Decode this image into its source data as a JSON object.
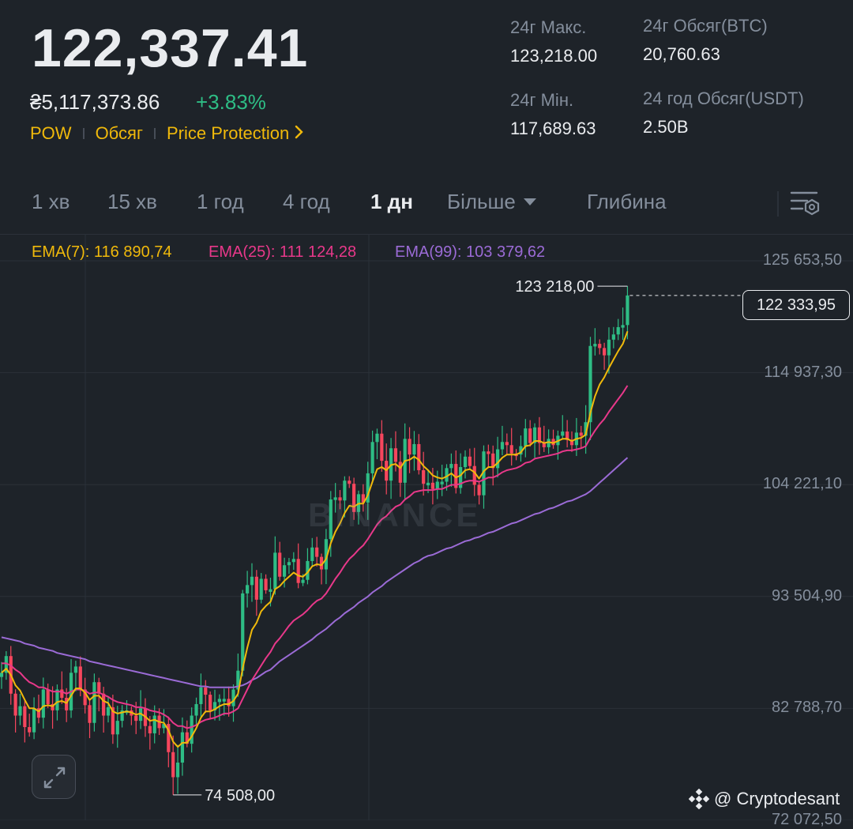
{
  "header": {
    "last_price": "122,337.41",
    "fiat_price": "₴5,117,373.86",
    "change_pct": "+3.83%",
    "tags": [
      "POW",
      "Обсяг",
      "Price Protection"
    ]
  },
  "stats": {
    "high_label": "24г Макс.",
    "high_value": "123,218.00",
    "low_label": "24г Мін.",
    "low_value": "117,689.63",
    "vol_btc_label": "24г Обсяг(BTC)",
    "vol_btc_value": "20,760.63",
    "vol_usdt_label": "24 год Обсяг(USDT)",
    "vol_usdt_value": "2.50B"
  },
  "tabs": {
    "items": [
      "1 хв",
      "15 хв",
      "1 год",
      "4 год",
      "1 дн",
      "Більше",
      "Глибина"
    ],
    "active": "1 дн"
  },
  "ema": {
    "ema7": "EMA(7): 116 890,74",
    "ema25": "EMA(25): 111 124,28",
    "ema99": "EMA(99): 103 379,62"
  },
  "colors": {
    "up": "#2ebd85",
    "down": "#f6465d",
    "ema7": "#f0b90b",
    "ema25": "#e8388a",
    "ema99": "#9b6bd6",
    "accent": "#f0b90b"
  },
  "watermark": "BINANCE",
  "credit": "@ Cryptodesant",
  "icons": [
    "chevron-right-icon",
    "caret-down-icon",
    "chart-settings-icon",
    "expand-icon",
    "binance-logo-icon"
  ],
  "chart_data": {
    "type": "candlestick",
    "interval": "1 дн",
    "y_axis_labels": [
      "125 653,50",
      "114 937,30",
      "104 221,10",
      "93 504,90",
      "82 788,70",
      "72 072,50"
    ],
    "y_axis_values": [
      125653.5,
      114937.3,
      104221.1,
      93504.9,
      82788.7,
      72072.5
    ],
    "ylim": [
      72072.5,
      125653.5
    ],
    "annotations": {
      "high_label": "123 218,00",
      "high_value": 123218.0,
      "low_label": "74 508,00",
      "low_value": 74508.0,
      "current_price_label": "122 333,95",
      "current_price": 122333.95
    },
    "closes": [
      86200,
      87800,
      84200,
      82100,
      83000,
      81000,
      80500,
      82800,
      81900,
      84600,
      83200,
      82600,
      84600,
      83800,
      82600,
      86200,
      86800,
      84600,
      83100,
      81400,
      85300,
      84200,
      82100,
      82900,
      80300,
      81600,
      82600,
      82600,
      82100,
      81600,
      82800,
      81100,
      80400,
      82100,
      80900,
      81300,
      78600,
      76200,
      77600,
      80500,
      79400,
      82100,
      83200,
      84800,
      84100,
      82600,
      83400,
      83700,
      83700,
      83000,
      84600,
      86400,
      93800,
      94600,
      95400,
      93200,
      95200,
      94100,
      94200,
      97700,
      95400,
      96500,
      96800,
      97100,
      94800,
      95100,
      96900,
      98200,
      97300,
      96100,
      99000,
      102800,
      103000,
      102700,
      104600,
      104300,
      101600,
      103300,
      102500,
      105300,
      108300,
      109100,
      106500,
      104600,
      107700,
      106400,
      104400,
      108600,
      107100,
      108100,
      105600,
      104300,
      104400,
      103800,
      104500,
      104500,
      105800,
      106200,
      103900,
      105900,
      106900,
      106000,
      104200,
      103200,
      107400,
      107200,
      105800,
      107600,
      108300,
      108000,
      107200,
      107100,
      107900,
      109600,
      108200,
      109700,
      108200,
      107800,
      108600,
      108000,
      108900,
      109300,
      108500,
      108000,
      109200,
      108900,
      110200,
      117500,
      117700,
      117300,
      116600,
      118100,
      118600,
      119300,
      119500,
      122334
    ],
    "ema7": [
      86200,
      86600,
      86000,
      85000,
      84500,
      83600,
      82800,
      82800,
      82500,
      83000,
      83100,
      83000,
      83400,
      83500,
      83300,
      84000,
      84700,
      84700,
      84300,
      83600,
      84000,
      84000,
      83500,
      83300,
      82500,
      82300,
      82400,
      82500,
      82400,
      82200,
      82300,
      82000,
      81600,
      81700,
      81500,
      81400,
      80700,
      79600,
      79100,
      79500,
      79500,
      80100,
      80900,
      81900,
      82500,
      82500,
      82700,
      83000,
      83200,
      83200,
      83500,
      84200,
      86600,
      88600,
      90300,
      91000,
      92100,
      92600,
      93000,
      94200,
      94500,
      95000,
      95400,
      95800,
      95500,
      95400,
      95800,
      96400,
      96600,
      96500,
      97100,
      98600,
      99700,
      100500,
      101500,
      102200,
      102100,
      102400,
      102400,
      103200,
      104500,
      105700,
      105900,
      105600,
      106100,
      106200,
      105800,
      106500,
      106600,
      106900,
      106600,
      106000,
      105600,
      105100,
      104900,
      104800,
      105000,
      105300,
      104900,
      105100,
      105600,
      105700,
      105400,
      104800,
      105500,
      105900,
      105900,
      106300,
      106800,
      107100,
      107100,
      107100,
      107300,
      107900,
      108000,
      108400,
      108400,
      108200,
      108300,
      108200,
      108400,
      108600,
      108600,
      108400,
      108600,
      108700,
      109000,
      111100,
      112700,
      113800,
      114500,
      115400,
      116200,
      117000,
      117700,
      118900
    ],
    "ema25": [
      87100,
      87100,
      86900,
      86500,
      86200,
      85700,
      85300,
      85100,
      84800,
      84800,
      84600,
      84400,
      84400,
      84400,
      84200,
      84400,
      84600,
      84600,
      84500,
      84200,
      84300,
      84300,
      84100,
      83900,
      83600,
      83400,
      83300,
      83200,
      83100,
      82900,
      82900,
      82800,
      82600,
      82500,
      82400,
      82200,
      81900,
      81400,
      81100,
      81100,
      80900,
      81000,
      81200,
      81500,
      81700,
      81800,
      81900,
      82100,
      82300,
      82300,
      82500,
      82800,
      83700,
      84600,
      85500,
      86200,
      86900,
      87600,
      88200,
      89000,
      89500,
      90100,
      90700,
      91200,
      91500,
      91800,
      92200,
      92700,
      93100,
      93300,
      93800,
      94500,
      95200,
      95800,
      96500,
      97100,
      97500,
      98000,
      98400,
      99000,
      99700,
      100400,
      100900,
      101200,
      101700,
      102100,
      102300,
      102800,
      103100,
      103500,
      103600,
      103700,
      103700,
      103700,
      103800,
      103800,
      104000,
      104200,
      104200,
      104300,
      104500,
      104600,
      104600,
      104500,
      104700,
      104900,
      104900,
      105100,
      105400,
      105600,
      105700,
      105800,
      106000,
      106300,
      106400,
      106700,
      106800,
      106900,
      107000,
      107100,
      107200,
      107400,
      107500,
      107500,
      107600,
      107700,
      107900,
      108700,
      109400,
      110000,
      110500,
      111200,
      111800,
      112400,
      113000,
      113700
    ],
    "ema99": [
      89600,
      89500,
      89400,
      89300,
      89200,
      89000,
      88900,
      88800,
      88600,
      88500,
      88400,
      88300,
      88100,
      88000,
      87900,
      87800,
      87700,
      87600,
      87500,
      87300,
      87200,
      87100,
      87000,
      86900,
      86800,
      86700,
      86600,
      86500,
      86400,
      86300,
      86200,
      86100,
      86000,
      85900,
      85800,
      85700,
      85600,
      85500,
      85400,
      85300,
      85200,
      85100,
      85000,
      84900,
      84900,
      84800,
      84800,
      84800,
      84800,
      84800,
      84800,
      84900,
      85000,
      85200,
      85500,
      85700,
      86000,
      86300,
      86500,
      86900,
      87300,
      87600,
      87900,
      88200,
      88500,
      88800,
      89100,
      89400,
      89800,
      90100,
      90400,
      90800,
      91200,
      91500,
      91900,
      92200,
      92500,
      92900,
      93200,
      93500,
      93900,
      94200,
      94500,
      94900,
      95200,
      95500,
      95800,
      96100,
      96400,
      96700,
      96900,
      97200,
      97400,
      97500,
      97700,
      97900,
      98100,
      98200,
      98400,
      98600,
      98800,
      98900,
      99100,
      99200,
      99400,
      99600,
      99700,
      99900,
      100100,
      100300,
      100500,
      100600,
      100800,
      101000,
      101200,
      101400,
      101500,
      101700,
      101900,
      102000,
      102200,
      102400,
      102600,
      102700,
      102900,
      103100,
      103300,
      103600,
      104000,
      104400,
      104800,
      105200,
      105600,
      106000,
      106400,
      106800
    ]
  }
}
